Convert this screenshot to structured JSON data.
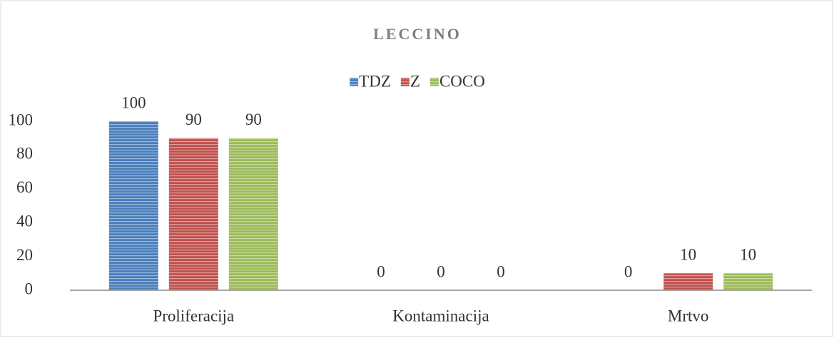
{
  "chart_data": {
    "type": "bar",
    "title": "LECCINO",
    "categories": [
      "Proliferacija",
      "Kontaminacija",
      "Mrtvo"
    ],
    "series": [
      {
        "name": "TDZ",
        "color": "#4a7ebb",
        "values": [
          100,
          0,
          0
        ]
      },
      {
        "name": "Z",
        "color": "#c0504d",
        "values": [
          90,
          0,
          10
        ]
      },
      {
        "name": "COCO",
        "color": "#9bbb59",
        "values": [
          90,
          0,
          10
        ]
      }
    ],
    "ylim": [
      0,
      100
    ],
    "yticks": [
      0,
      20,
      40,
      60,
      80,
      100
    ],
    "grid": false,
    "legend": "top"
  }
}
